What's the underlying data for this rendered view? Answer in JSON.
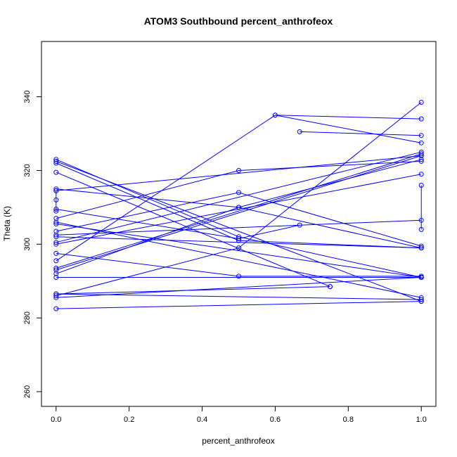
{
  "chart_data": {
    "type": "line",
    "title": "ATOM3 Southbound percent_anthrofeox",
    "xlabel": "percent_anthrofeox",
    "ylabel": "Theta (K)",
    "xlim": [
      -0.04,
      1.04
    ],
    "ylim": [
      256,
      355
    ],
    "xticks": [
      0.0,
      0.2,
      0.4,
      0.6,
      0.8,
      1.0
    ],
    "xtick_labels": [
      "0.0",
      "0.2",
      "0.4",
      "0.6",
      "0.8",
      "1.0"
    ],
    "yticks": [
      260,
      280,
      300,
      320,
      340
    ],
    "ytick_labels": [
      "260",
      "280",
      "300",
      "320",
      "340"
    ],
    "grid": false,
    "color": "#0000ff",
    "series": [
      {
        "x": [
          0,
          1
        ],
        "y": [
          282.5,
          284.5
        ]
      },
      {
        "x": [
          0,
          1
        ],
        "y": [
          285.5,
          291.0
        ]
      },
      {
        "x": [
          0,
          1
        ],
        "y": [
          286.5,
          285.0
        ]
      },
      {
        "x": [
          0,
          1
        ],
        "y": [
          291.0,
          291.0
        ]
      },
      {
        "x": [
          0,
          0.5,
          1
        ],
        "y": [
          297.5,
          291.3,
          291.3
        ]
      },
      {
        "x": [
          0,
          1
        ],
        "y": [
          293.5,
          324.5
        ]
      },
      {
        "x": [
          0,
          1
        ],
        "y": [
          293.0,
          324.0
        ]
      },
      {
        "x": [
          0,
          0.6,
          1
        ],
        "y": [
          295.5,
          335.0,
          334.0
        ]
      },
      {
        "x": [
          0,
          1
        ],
        "y": [
          300.5,
          325.0
        ]
      },
      {
        "x": [
          0,
          1
        ],
        "y": [
          302.0,
          299.0
        ]
      },
      {
        "x": [
          0,
          1
        ],
        "y": [
          302.5,
          306.5
        ]
      },
      {
        "x": [
          0,
          0.5,
          1
        ],
        "y": [
          303.5,
          314.0,
          299.5
        ]
      },
      {
        "x": [
          0,
          1
        ],
        "y": [
          305.5,
          291.0
        ]
      },
      {
        "x": [
          0,
          1
        ],
        "y": [
          306.0,
          285.5
        ]
      },
      {
        "x": [
          0,
          0.5,
          0.667
        ],
        "y": [
          309.5,
          301.5,
          305.2
        ]
      },
      {
        "x": [
          0,
          1
        ],
        "y": [
          314.5,
          324.0
        ]
      },
      {
        "x": [
          0,
          0.5,
          1
        ],
        "y": [
          315.0,
          310.0,
          299.0
        ]
      },
      {
        "x": [
          0,
          0.75
        ],
        "y": [
          319.5,
          288.5
        ]
      },
      {
        "x": [
          0,
          0.5,
          1
        ],
        "y": [
          322.0,
          301.0,
          299.0
        ]
      },
      {
        "x": [
          0,
          1
        ],
        "y": [
          322.5,
          284.5
        ]
      },
      {
        "x": [
          0,
          0.5,
          1
        ],
        "y": [
          323.0,
          302.0,
          291.0
        ]
      },
      {
        "x": [
          0,
          0.5,
          1
        ],
        "y": [
          286.0,
          299.0,
          338.5
        ]
      },
      {
        "x": [
          0,
          0.75
        ],
        "y": [
          286.5,
          288.5
        ]
      },
      {
        "x": [
          0,
          0.5,
          1
        ],
        "y": [
          292.0,
          310.0,
          323.0
        ]
      },
      {
        "x": [
          0,
          1
        ],
        "y": [
          300.0,
          319.0
        ]
      },
      {
        "x": [
          0,
          0.5,
          1
        ],
        "y": [
          307.0,
          320.0,
          322.5
        ]
      },
      {
        "x": [
          0.667,
          1
        ],
        "y": [
          330.5,
          329.5
        ]
      },
      {
        "x": [
          0.6,
          1
        ],
        "y": [
          335.0,
          327.5
        ]
      },
      {
        "x": [
          1,
          1
        ],
        "y": [
          316.0,
          304.0
        ]
      },
      {
        "x": [
          0,
          0,
          0
        ],
        "y": [
          314.5,
          312.0,
          309.0
        ]
      }
    ]
  }
}
